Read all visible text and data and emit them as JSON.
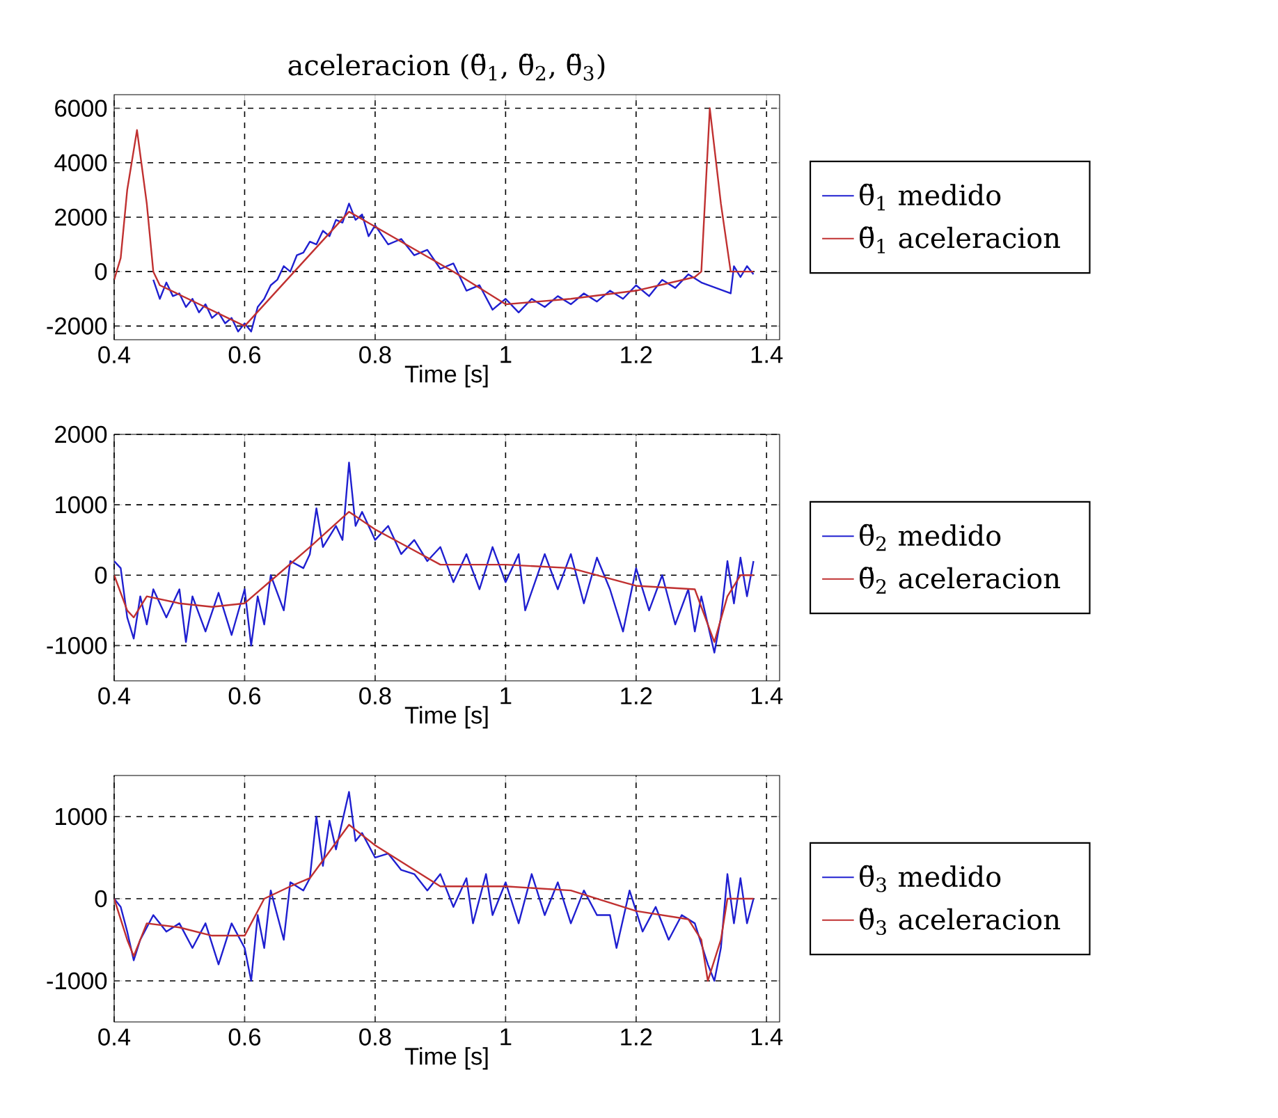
{
  "chart_data": [
    {
      "type": "line",
      "title": "aceleracion (θ̈$_{1}$, θ̈$_{2}$, θ̈$_{3}$)",
      "xlabel": "Time [s]",
      "xlim": [
        0.4,
        1.42
      ],
      "xticks": [
        0.4,
        0.6,
        0.8,
        1,
        1.2,
        1.4
      ],
      "ylim": [
        -2500,
        6500
      ],
      "yticks": [
        -2000,
        0,
        2000,
        4000,
        6000
      ],
      "grid": true,
      "legend": "right",
      "line_style": "solid",
      "series": [
        {
          "name": "θ̈$_{1}$ medido",
          "color": "#1f1fd0",
          "x": [
            0.46,
            0.47,
            0.48,
            0.49,
            0.5,
            0.51,
            0.52,
            0.53,
            0.54,
            0.55,
            0.56,
            0.57,
            0.58,
            0.59,
            0.6,
            0.61,
            0.62,
            0.63,
            0.64,
            0.65,
            0.66,
            0.67,
            0.68,
            0.69,
            0.7,
            0.71,
            0.72,
            0.73,
            0.74,
            0.75,
            0.76,
            0.77,
            0.78,
            0.79,
            0.8,
            0.82,
            0.84,
            0.86,
            0.88,
            0.9,
            0.92,
            0.94,
            0.96,
            0.98,
            1.0,
            1.02,
            1.04,
            1.06,
            1.08,
            1.1,
            1.12,
            1.14,
            1.16,
            1.18,
            1.2,
            1.22,
            1.24,
            1.26,
            1.28,
            1.3,
            1.345,
            1.35,
            1.36,
            1.37,
            1.38
          ],
          "values": [
            -300,
            -1000,
            -400,
            -900,
            -800,
            -1300,
            -1000,
            -1500,
            -1200,
            -1700,
            -1500,
            -1900,
            -1700,
            -2200,
            -1900,
            -2200,
            -1300,
            -1000,
            -500,
            -300,
            200,
            0,
            600,
            700,
            1100,
            1000,
            1500,
            1300,
            1900,
            1800,
            2500,
            1900,
            2100,
            1300,
            1700,
            1000,
            1200,
            600,
            800,
            100,
            300,
            -700,
            -500,
            -1400,
            -1000,
            -1500,
            -1000,
            -1300,
            -900,
            -1200,
            -800,
            -1100,
            -700,
            -1000,
            -500,
            -900,
            -300,
            -600,
            -100,
            -400,
            -800,
            200,
            -200,
            200,
            -100
          ]
        },
        {
          "name": "θ̈$_{1}$ aceleracion",
          "color": "#c03030",
          "x": [
            0.4,
            0.41,
            0.42,
            0.435,
            0.45,
            0.46,
            0.47,
            0.6,
            0.76,
            0.92,
            1.0,
            1.1,
            1.2,
            1.29,
            1.3,
            1.313,
            1.33,
            1.345,
            1.38
          ],
          "values": [
            -300,
            500,
            3000,
            5200,
            2500,
            0,
            -500,
            -2000,
            2200,
            0,
            -1200,
            -1000,
            -700,
            -200,
            0,
            6000,
            2500,
            0,
            0
          ]
        }
      ]
    },
    {
      "type": "line",
      "xlabel": "Time [s]",
      "xlim": [
        0.4,
        1.42
      ],
      "xticks": [
        0.4,
        0.6,
        0.8,
        1,
        1.2,
        1.4
      ],
      "ylim": [
        -1500,
        2000
      ],
      "yticks": [
        -1000,
        0,
        1000,
        2000
      ],
      "grid": true,
      "legend": "right",
      "line_style": "solid",
      "series": [
        {
          "name": "θ̈$_{2}$ medido",
          "color": "#1f1fd0",
          "x": [
            0.4,
            0.41,
            0.42,
            0.43,
            0.44,
            0.45,
            0.46,
            0.48,
            0.5,
            0.51,
            0.52,
            0.54,
            0.56,
            0.58,
            0.6,
            0.61,
            0.62,
            0.63,
            0.64,
            0.66,
            0.67,
            0.69,
            0.7,
            0.71,
            0.72,
            0.74,
            0.75,
            0.76,
            0.77,
            0.78,
            0.8,
            0.82,
            0.84,
            0.86,
            0.88,
            0.9,
            0.92,
            0.94,
            0.96,
            0.98,
            1.0,
            1.02,
            1.03,
            1.06,
            1.08,
            1.1,
            1.12,
            1.14,
            1.16,
            1.18,
            1.2,
            1.22,
            1.24,
            1.26,
            1.28,
            1.29,
            1.3,
            1.32,
            1.33,
            1.34,
            1.35,
            1.36,
            1.37,
            1.38
          ],
          "values": [
            200,
            100,
            -600,
            -900,
            -300,
            -700,
            -200,
            -600,
            -200,
            -950,
            -300,
            -800,
            -250,
            -850,
            -200,
            -1000,
            -300,
            -700,
            0,
            -500,
            200,
            100,
            300,
            950,
            400,
            700,
            500,
            1600,
            700,
            900,
            500,
            700,
            300,
            500,
            200,
            400,
            -100,
            300,
            -200,
            400,
            -100,
            300,
            -500,
            300,
            -200,
            300,
            -400,
            250,
            -200,
            -800,
            100,
            -500,
            0,
            -700,
            -200,
            -800,
            -300,
            -1100,
            -600,
            200,
            -400,
            250,
            -300,
            200
          ]
        },
        {
          "name": "θ̈$_{2}$ aceleracion",
          "color": "#c03030",
          "x": [
            0.4,
            0.42,
            0.43,
            0.45,
            0.5,
            0.55,
            0.6,
            0.65,
            0.7,
            0.76,
            0.8,
            0.85,
            0.9,
            0.95,
            1.0,
            1.1,
            1.2,
            1.29,
            1.31,
            1.32,
            1.34,
            1.36,
            1.38
          ],
          "values": [
            0,
            -500,
            -600,
            -300,
            -400,
            -450,
            -400,
            0,
            400,
            900,
            650,
            400,
            150,
            150,
            150,
            100,
            -150,
            -200,
            -700,
            -950,
            -300,
            0,
            0
          ]
        }
      ]
    },
    {
      "type": "line",
      "xlabel": "Time [s]",
      "xlim": [
        0.4,
        1.42
      ],
      "xticks": [
        0.4,
        0.6,
        0.8,
        1,
        1.2,
        1.4
      ],
      "ylim": [
        -1500,
        1500
      ],
      "yticks": [
        -1000,
        0,
        1000
      ],
      "grid": true,
      "legend": "right",
      "line_style": "solid",
      "series": [
        {
          "name": "θ̈$_{3}$ medido",
          "color": "#1f1fd0",
          "x": [
            0.4,
            0.41,
            0.42,
            0.43,
            0.44,
            0.46,
            0.48,
            0.5,
            0.52,
            0.54,
            0.56,
            0.58,
            0.6,
            0.61,
            0.62,
            0.63,
            0.64,
            0.66,
            0.67,
            0.69,
            0.7,
            0.71,
            0.72,
            0.73,
            0.74,
            0.76,
            0.77,
            0.78,
            0.8,
            0.82,
            0.84,
            0.86,
            0.88,
            0.9,
            0.92,
            0.94,
            0.95,
            0.97,
            0.98,
            1.0,
            1.02,
            1.04,
            1.06,
            1.08,
            1.1,
            1.12,
            1.14,
            1.16,
            1.17,
            1.19,
            1.21,
            1.23,
            1.25,
            1.27,
            1.29,
            1.31,
            1.32,
            1.33,
            1.34,
            1.35,
            1.36,
            1.37,
            1.38
          ],
          "values": [
            0,
            -100,
            -400,
            -750,
            -500,
            -200,
            -400,
            -300,
            -600,
            -300,
            -800,
            -300,
            -600,
            -1000,
            -200,
            -600,
            100,
            -500,
            200,
            100,
            250,
            1000,
            400,
            950,
            600,
            1300,
            700,
            800,
            500,
            550,
            350,
            300,
            100,
            300,
            -100,
            250,
            -300,
            300,
            -200,
            200,
            -300,
            300,
            -200,
            200,
            -300,
            100,
            -200,
            -200,
            -600,
            100,
            -400,
            -100,
            -500,
            -200,
            -300,
            -800,
            -1000,
            -600,
            300,
            -300,
            250,
            -300,
            0
          ]
        },
        {
          "name": "θ̈$_{3}$ aceleracion",
          "color": "#c03030",
          "x": [
            0.4,
            0.42,
            0.43,
            0.45,
            0.5,
            0.55,
            0.6,
            0.63,
            0.67,
            0.7,
            0.76,
            0.8,
            0.85,
            0.9,
            1.0,
            1.1,
            1.2,
            1.28,
            1.3,
            1.31,
            1.33,
            1.34,
            1.36,
            1.38
          ],
          "values": [
            0,
            -500,
            -700,
            -300,
            -350,
            -450,
            -450,
            0,
            150,
            250,
            900,
            650,
            400,
            150,
            150,
            100,
            -150,
            -250,
            -500,
            -1000,
            -500,
            0,
            0,
            0
          ]
        }
      ]
    }
  ]
}
